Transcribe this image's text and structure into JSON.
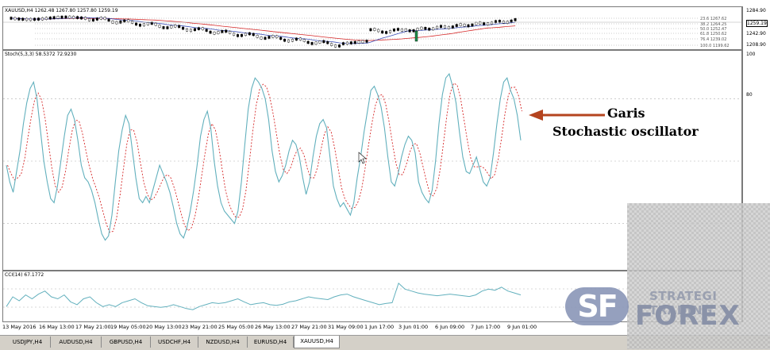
{
  "price_pane": {
    "label": "XAUUSD,H4  1262.48 1267.80 1257.80 1259.19",
    "fib_labels": [
      "23.6 1267.62",
      "38.2 1264.25",
      "50.0 1252.47",
      "61.8 1250.62",
      "76.4 1239.02",
      "100.0 1199.62"
    ],
    "axis_labels": [
      "1284.90",
      "1259.19",
      "1242.90",
      "1208.90"
    ],
    "current_price": "1259.19"
  },
  "stoch_pane": {
    "label": "Stoch(5,3,3) 58.5372 72.9230",
    "axis_labels": [
      "100",
      "80"
    ],
    "main_line_color": "#62b0bd",
    "signal_line_color": "#d62828",
    "main": [
      48,
      40,
      35,
      45,
      55,
      68,
      78,
      85,
      88,
      80,
      65,
      50,
      40,
      32,
      30,
      38,
      50,
      62,
      72,
      75,
      70,
      60,
      48,
      42,
      40,
      36,
      30,
      22,
      15,
      12,
      14,
      24,
      40,
      55,
      65,
      72,
      68,
      55,
      42,
      32,
      30,
      33,
      30,
      36,
      42,
      48,
      44,
      40,
      35,
      28,
      20,
      15,
      13,
      18,
      26,
      36,
      48,
      62,
      70,
      74,
      66,
      50,
      38,
      30,
      26,
      24,
      22,
      20,
      26,
      40,
      58,
      75,
      85,
      90,
      88,
      85,
      80,
      70,
      55,
      45,
      40,
      43,
      48,
      55,
      60,
      58,
      52,
      42,
      34,
      40,
      52,
      62,
      68,
      70,
      66,
      52,
      38,
      32,
      28,
      30,
      27,
      24,
      30,
      42,
      52,
      64,
      74,
      84,
      86,
      82,
      76,
      66,
      52,
      40,
      38,
      44,
      52,
      58,
      62,
      60,
      54,
      40,
      35,
      32,
      30,
      36,
      50,
      68,
      82,
      90,
      92,
      86,
      78,
      64,
      52,
      45,
      44,
      48,
      52,
      46,
      40,
      38,
      42,
      54,
      68,
      80,
      88,
      90,
      84,
      80,
      72,
      60
    ]
  },
  "cci_pane": {
    "label": "CCI(14) 67.1772",
    "axis_labels": [],
    "line_color": "#62b0bd",
    "values": [
      0.3,
      0.55,
      0.45,
      0.6,
      0.5,
      0.62,
      0.7,
      0.55,
      0.5,
      0.6,
      0.42,
      0.35,
      0.5,
      0.55,
      0.4,
      0.3,
      0.35,
      0.3,
      0.4,
      0.45,
      0.5,
      0.4,
      0.32,
      0.3,
      0.28,
      0.3,
      0.35,
      0.3,
      0.25,
      0.22,
      0.3,
      0.35,
      0.4,
      0.38,
      0.4,
      0.45,
      0.5,
      0.42,
      0.35,
      0.38,
      0.4,
      0.35,
      0.33,
      0.36,
      0.42,
      0.45,
      0.5,
      0.55,
      0.52,
      0.5,
      0.48,
      0.55,
      0.6,
      0.62,
      0.55,
      0.5,
      0.45,
      0.4,
      0.35,
      0.38,
      0.4,
      0.9,
      0.75,
      0.7,
      0.65,
      0.62,
      0.6,
      0.58,
      0.6,
      0.62,
      0.6,
      0.58,
      0.56,
      0.6,
      0.7,
      0.75,
      0.72,
      0.8,
      0.7,
      0.65,
      0.6
    ]
  },
  "time_axis": [
    "13 May 2016",
    "16 May 13:00",
    "17 May 21:00",
    "19 May 05:00",
    "20 May 13:00",
    "23 May 21:00",
    "25 May 05:00",
    "26 May 13:00",
    "27 May 21:00",
    "31 May 09:00",
    "1 Jun 17:00",
    "3 Jun 01:00",
    "6 Jun 09:00",
    "7 Jun 17:00",
    "9 Jun 01:00"
  ],
  "tabs": [
    "USDJPY,H4",
    "AUDUSD,H4",
    "GBPUSD,H4",
    "USDCHF,H4",
    "NZDUSD,H4",
    "EURUSD,H4",
    "XAUUSD,H4"
  ],
  "active_tab": "XAUUSD,H4",
  "annotation": {
    "line1": "Garis",
    "line2": "Stochastic oscillator",
    "arrow_color": "#b5441f"
  },
  "watermark": {
    "mark": "SF",
    "top": "STRATEGI TRADING",
    "bottom": "FOREX"
  }
}
